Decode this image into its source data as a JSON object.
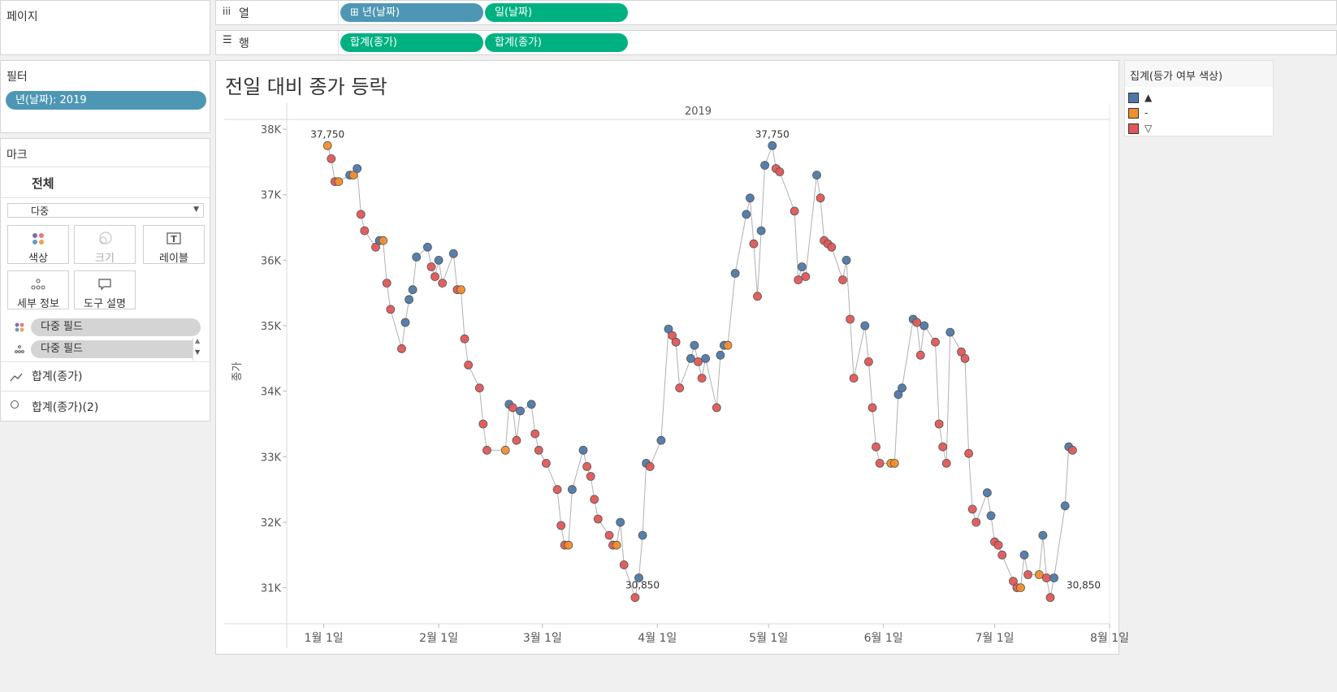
{
  "pages": {
    "title": "페이지"
  },
  "columns": {
    "label": "열",
    "pills": [
      "⊞ 년(날짜)",
      "일(날짜)"
    ]
  },
  "rows": {
    "label": "행",
    "pills": [
      "합계(종가)",
      "합계(종가)"
    ]
  },
  "filters": {
    "title": "필터",
    "pill": "년(날짜): 2019"
  },
  "marks": {
    "title": "마크",
    "all_label": "전체",
    "type_select": "다중",
    "buttons": {
      "color": "색상",
      "size": "크기",
      "label": "레이블",
      "detail": "세부 정보",
      "tooltip": "도구 설명"
    },
    "fields": [
      "다중 필드",
      "다중 필드"
    ],
    "measures": [
      "합계(종가)",
      "합계(종가)(2)"
    ]
  },
  "legend": {
    "title": "집계(등가 여부 색상)",
    "items": [
      {
        "label": "▲",
        "color": "#4e79a7"
      },
      {
        "label": "-",
        "color": "#f28e2b"
      },
      {
        "label": "▽",
        "color": "#e15759"
      }
    ]
  },
  "chart_data": {
    "type": "line",
    "title": "전일 대비 종가 등락",
    "column_header": "2019",
    "ylabel": "종가",
    "ylim": [
      30450,
      38150
    ],
    "yticks": [
      31000,
      32000,
      33000,
      34000,
      35000,
      36000,
      37000,
      38000
    ],
    "ytick_labels": [
      "31K",
      "32K",
      "33K",
      "34K",
      "35K",
      "36K",
      "37K",
      "38K"
    ],
    "xlim": [
      "2018-12-22",
      "2019-08-01"
    ],
    "xticks": [
      "2019-01-01",
      "2019-02-01",
      "2019-03-01",
      "2019-04-01",
      "2019-05-01",
      "2019-06-01",
      "2019-07-01",
      "2019-08-01"
    ],
    "xtick_labels": [
      "1월 1일",
      "2월 1일",
      "3월 1일",
      "4월 1일",
      "5월 1일",
      "6월 1일",
      "7월 1일",
      "8월 1일"
    ],
    "annotations": [
      {
        "x": "2019-01-02",
        "y": 37750,
        "text": "37,750"
      },
      {
        "x": "2019-05-02",
        "y": 37750,
        "text": "37,750"
      },
      {
        "x": "2019-03-28",
        "y": 30850,
        "text": "30,850"
      },
      {
        "x": "2019-07-25",
        "y": 30850,
        "text": "30,850"
      }
    ],
    "colors": {
      "up": "#4e79a7",
      "same": "#f28e2b",
      "down": "#e15759"
    },
    "series": [
      {
        "name": "종가",
        "points": [
          [
            "2019-01-02",
            37750,
            "same"
          ],
          [
            "2019-01-03",
            37550,
            "down"
          ],
          [
            "2019-01-04",
            37200,
            "down"
          ],
          [
            "2019-01-05",
            37200,
            "same"
          ],
          [
            "2019-01-08",
            37300,
            "up"
          ],
          [
            "2019-01-09",
            37300,
            "same"
          ],
          [
            "2019-01-10",
            37400,
            "up"
          ],
          [
            "2019-01-11",
            36700,
            "down"
          ],
          [
            "2019-01-12",
            36450,
            "down"
          ],
          [
            "2019-01-15",
            36200,
            "down"
          ],
          [
            "2019-01-16",
            36300,
            "up"
          ],
          [
            "2019-01-17",
            36300,
            "same"
          ],
          [
            "2019-01-18",
            35650,
            "down"
          ],
          [
            "2019-01-19",
            35250,
            "down"
          ],
          [
            "2019-01-22",
            34650,
            "down"
          ],
          [
            "2019-01-23",
            35050,
            "up"
          ],
          [
            "2019-01-24",
            35400,
            "up"
          ],
          [
            "2019-01-25",
            35550,
            "up"
          ],
          [
            "2019-01-26",
            36050,
            "up"
          ],
          [
            "2019-01-29",
            36200,
            "up"
          ],
          [
            "2019-01-30",
            35900,
            "down"
          ],
          [
            "2019-01-31",
            35750,
            "down"
          ],
          [
            "2019-02-01",
            36000,
            "up"
          ],
          [
            "2019-02-02",
            35650,
            "down"
          ],
          [
            "2019-02-05",
            36100,
            "up"
          ],
          [
            "2019-02-06",
            35550,
            "down"
          ],
          [
            "2019-02-07",
            35550,
            "same"
          ],
          [
            "2019-02-08",
            34800,
            "down"
          ],
          [
            "2019-02-09",
            34400,
            "down"
          ],
          [
            "2019-02-12",
            34050,
            "down"
          ],
          [
            "2019-02-13",
            33500,
            "down"
          ],
          [
            "2019-02-14",
            33100,
            "down"
          ],
          [
            "2019-02-19",
            33100,
            "same"
          ],
          [
            "2019-02-20",
            33800,
            "up"
          ],
          [
            "2019-02-21",
            33750,
            "down"
          ],
          [
            "2019-02-22",
            33250,
            "down"
          ],
          [
            "2019-02-23",
            33700,
            "up"
          ],
          [
            "2019-02-26",
            33800,
            "up"
          ],
          [
            "2019-02-27",
            33350,
            "down"
          ],
          [
            "2019-02-28",
            33100,
            "down"
          ],
          [
            "2019-03-02",
            32900,
            "down"
          ],
          [
            "2019-03-05",
            32500,
            "down"
          ],
          [
            "2019-03-06",
            31950,
            "down"
          ],
          [
            "2019-03-07",
            31650,
            "down"
          ],
          [
            "2019-03-08",
            31650,
            "same"
          ],
          [
            "2019-03-09",
            32500,
            "up"
          ],
          [
            "2019-03-12",
            33100,
            "up"
          ],
          [
            "2019-03-13",
            32850,
            "down"
          ],
          [
            "2019-03-14",
            32700,
            "down"
          ],
          [
            "2019-03-15",
            32350,
            "down"
          ],
          [
            "2019-03-16",
            32050,
            "down"
          ],
          [
            "2019-03-19",
            31800,
            "down"
          ],
          [
            "2019-03-20",
            31650,
            "down"
          ],
          [
            "2019-03-21",
            31650,
            "same"
          ],
          [
            "2019-03-22",
            32000,
            "up"
          ],
          [
            "2019-03-23",
            31350,
            "down"
          ],
          [
            "2019-03-26",
            30850,
            "down"
          ],
          [
            "2019-03-27",
            31150,
            "up"
          ],
          [
            "2019-03-28",
            31800,
            "up"
          ],
          [
            "2019-03-29",
            32900,
            "up"
          ],
          [
            "2019-03-30",
            32850,
            "down"
          ],
          [
            "2019-04-02",
            33250,
            "up"
          ],
          [
            "2019-04-04",
            34950,
            "up"
          ],
          [
            "2019-04-05",
            34850,
            "down"
          ],
          [
            "2019-04-06",
            34750,
            "down"
          ],
          [
            "2019-04-07",
            34050,
            "down"
          ],
          [
            "2019-04-10",
            34500,
            "up"
          ],
          [
            "2019-04-11",
            34700,
            "up"
          ],
          [
            "2019-04-12",
            34450,
            "down"
          ],
          [
            "2019-04-13",
            34200,
            "down"
          ],
          [
            "2019-04-14",
            34500,
            "up"
          ],
          [
            "2019-04-17",
            33750,
            "down"
          ],
          [
            "2019-04-18",
            34550,
            "up"
          ],
          [
            "2019-04-19",
            34700,
            "up"
          ],
          [
            "2019-04-20",
            34700,
            "same"
          ],
          [
            "2019-04-22",
            35800,
            "up"
          ],
          [
            "2019-04-25",
            36700,
            "up"
          ],
          [
            "2019-04-26",
            36950,
            "up"
          ],
          [
            "2019-04-27",
            36250,
            "down"
          ],
          [
            "2019-04-28",
            35450,
            "down"
          ],
          [
            "2019-04-29",
            36450,
            "up"
          ],
          [
            "2019-04-30",
            37450,
            "up"
          ],
          [
            "2019-05-02",
            37750,
            "up"
          ],
          [
            "2019-05-03",
            37400,
            "down"
          ],
          [
            "2019-05-04",
            37350,
            "down"
          ],
          [
            "2019-05-08",
            36750,
            "down"
          ],
          [
            "2019-05-09",
            35700,
            "down"
          ],
          [
            "2019-05-10",
            35900,
            "up"
          ],
          [
            "2019-05-11",
            35750,
            "down"
          ],
          [
            "2019-05-14",
            37300,
            "up"
          ],
          [
            "2019-05-15",
            36950,
            "down"
          ],
          [
            "2019-05-16",
            36300,
            "down"
          ],
          [
            "2019-05-17",
            36250,
            "down"
          ],
          [
            "2019-05-18",
            36200,
            "down"
          ],
          [
            "2019-05-21",
            35700,
            "down"
          ],
          [
            "2019-05-22",
            36000,
            "up"
          ],
          [
            "2019-05-23",
            35100,
            "down"
          ],
          [
            "2019-05-24",
            34200,
            "down"
          ],
          [
            "2019-05-27",
            35000,
            "up"
          ],
          [
            "2019-05-28",
            34450,
            "down"
          ],
          [
            "2019-05-29",
            33750,
            "down"
          ],
          [
            "2019-05-30",
            33150,
            "down"
          ],
          [
            "2019-05-31",
            32900,
            "down"
          ],
          [
            "2019-06-03",
            32900,
            "same"
          ],
          [
            "2019-06-04",
            32900,
            "same"
          ],
          [
            "2019-06-05",
            33950,
            "up"
          ],
          [
            "2019-06-06",
            34050,
            "up"
          ],
          [
            "2019-06-09",
            35100,
            "up"
          ],
          [
            "2019-06-10",
            35050,
            "down"
          ],
          [
            "2019-06-11",
            34550,
            "down"
          ],
          [
            "2019-06-12",
            35000,
            "up"
          ],
          [
            "2019-06-15",
            34750,
            "down"
          ],
          [
            "2019-06-16",
            33500,
            "down"
          ],
          [
            "2019-06-17",
            33150,
            "down"
          ],
          [
            "2019-06-18",
            32900,
            "down"
          ],
          [
            "2019-06-19",
            34900,
            "up"
          ],
          [
            "2019-06-22",
            34600,
            "down"
          ],
          [
            "2019-06-23",
            34500,
            "down"
          ],
          [
            "2019-06-24",
            33050,
            "down"
          ],
          [
            "2019-06-25",
            32200,
            "down"
          ],
          [
            "2019-06-26",
            32000,
            "down"
          ],
          [
            "2019-06-29",
            32450,
            "up"
          ],
          [
            "2019-06-30",
            32100,
            "up"
          ],
          [
            "2019-07-01",
            31700,
            "down"
          ],
          [
            "2019-07-02",
            31650,
            "down"
          ],
          [
            "2019-07-03",
            31500,
            "down"
          ],
          [
            "2019-07-06",
            31100,
            "down"
          ],
          [
            "2019-07-07",
            31000,
            "down"
          ],
          [
            "2019-07-08",
            31000,
            "same"
          ],
          [
            "2019-07-09",
            31500,
            "up"
          ],
          [
            "2019-07-10",
            31200,
            "down"
          ],
          [
            "2019-07-13",
            31200,
            "same"
          ],
          [
            "2019-07-14",
            31800,
            "up"
          ],
          [
            "2019-07-15",
            31150,
            "down"
          ],
          [
            "2019-07-16",
            30850,
            "down"
          ],
          [
            "2019-07-17",
            31150,
            "up"
          ],
          [
            "2019-07-20",
            32250,
            "up"
          ],
          [
            "2019-07-21",
            33150,
            "up"
          ],
          [
            "2019-07-22",
            33100,
            "down"
          ]
        ]
      }
    ]
  }
}
